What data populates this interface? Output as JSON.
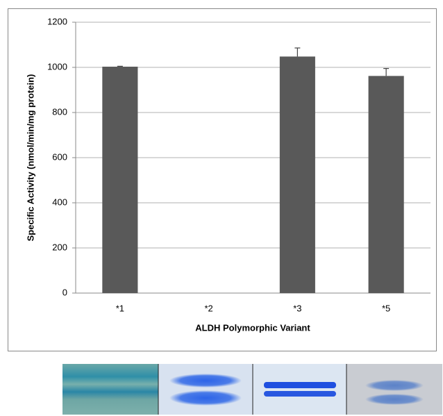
{
  "chart_data": {
    "type": "bar",
    "x_label": "ALDH Polymorphic Variant",
    "y_label": "Specific Activity (nmol/min/mg protein)",
    "categories": [
      "*1",
      "*2",
      "*3",
      "*5"
    ],
    "values": [
      1003,
      0,
      1048,
      962
    ],
    "errors": [
      2,
      null,
      38,
      33
    ],
    "color": "#595959",
    "ylim": [
      0,
      1200
    ],
    "yticks": [
      0,
      200,
      400,
      600,
      800,
      1000,
      1200
    ],
    "grid": true
  }
}
